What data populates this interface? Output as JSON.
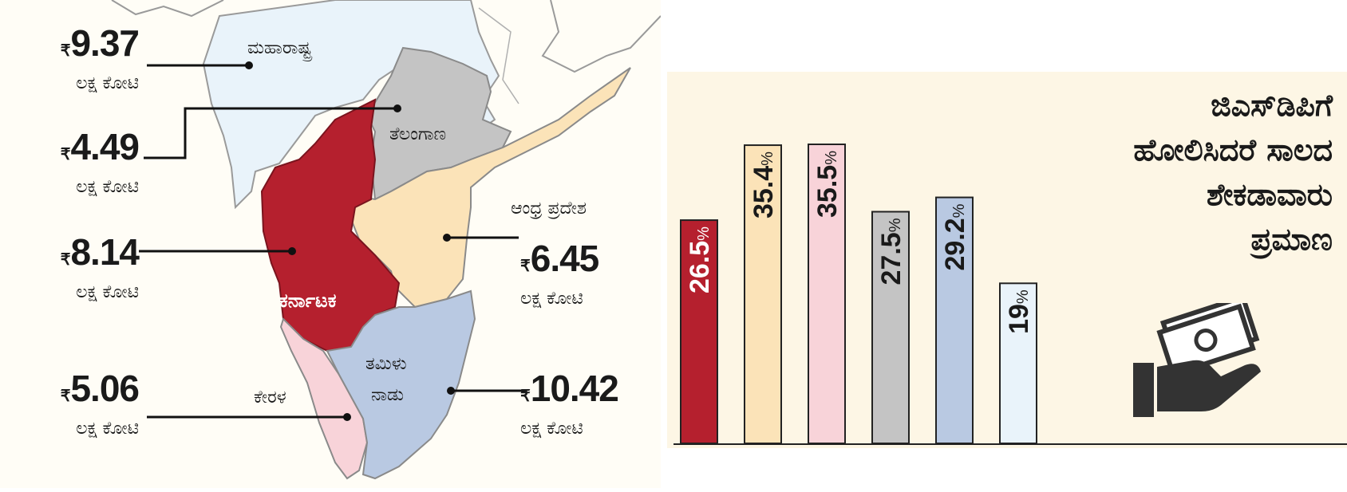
{
  "map": {
    "states": [
      {
        "key": "maharashtra",
        "name": "ಮಹಾರಾಷ್ಟ್ರ",
        "color": "#e9f3fa",
        "debt": "9.37",
        "unit": "ಲಕ್ಷ ಕೋಟಿ"
      },
      {
        "key": "telangana",
        "name": "ತೆಲಂಗಾಣ",
        "color": "#c4c4c4",
        "debt": "4.49",
        "unit": "ಲಕ್ಷ ಕೋಟಿ"
      },
      {
        "key": "karnataka",
        "name": "ಕರ್ನಾಟಕ",
        "color": "#b5202e",
        "debt": "8.14",
        "unit": "ಲಕ್ಷ ಕೋಟಿ"
      },
      {
        "key": "andhra",
        "name": "ಆಂಧ್ರ ಪ್ರದೇಶ",
        "color": "#fbe3b8",
        "debt": "6.45",
        "unit": "ಲಕ್ಷ ಕೋಟಿ"
      },
      {
        "key": "kerala",
        "name": "ಕೇರಳ",
        "color": "#f8d3d9",
        "debt": "5.06",
        "unit": "ಲಕ್ಷ ಕೋಟಿ"
      },
      {
        "key": "tamilnadu",
        "name_line1": "ತಮಿಳು",
        "name_line2": "ನಾಡು",
        "color": "#b9c9e2",
        "debt": "10.42",
        "unit": "ಲಕ್ಷ ಕೋಟಿ"
      }
    ],
    "currency_symbol": "₹"
  },
  "chart_title": [
    "ಜಿಎಸ್‌ಡಿಪಿಗೆ",
    "ಹೋಲಿಸಿದರೆ ಸಾಲದ",
    "ಶೇಕಡಾವಾರು",
    "ಪ್ರಮಾಣ"
  ],
  "chart_data": {
    "type": "bar",
    "title": "ಜಿಎಸ್‌ಡಿಪಿಗೆ ಹೋಲಿಸಿದರೆ ಸಾಲದ ಶೇಕಡಾವಾರು ಪ್ರಮಾಣ",
    "ylim": [
      0,
      40
    ],
    "unit": "%",
    "bars": [
      {
        "label": "26.5",
        "value": 26.5,
        "color": "#b5202e",
        "text_color": "#ffffff"
      },
      {
        "label": "35.4",
        "value": 35.4,
        "color": "#fbe3b8",
        "text_color": "#1a1a1a"
      },
      {
        "label": "35.5",
        "value": 35.5,
        "color": "#f8d3d9",
        "text_color": "#1a1a1a"
      },
      {
        "label": "27.5",
        "value": 27.5,
        "color": "#c4c4c4",
        "text_color": "#1a1a1a"
      },
      {
        "label": "29.2",
        "value": 29.2,
        "color": "#b9c9e2",
        "text_color": "#1a1a1a"
      },
      {
        "label": "19",
        "value": 19,
        "color": "#e9f3fa",
        "text_color": "#1a1a1a"
      }
    ]
  },
  "icon": "hand-with-money-icon"
}
